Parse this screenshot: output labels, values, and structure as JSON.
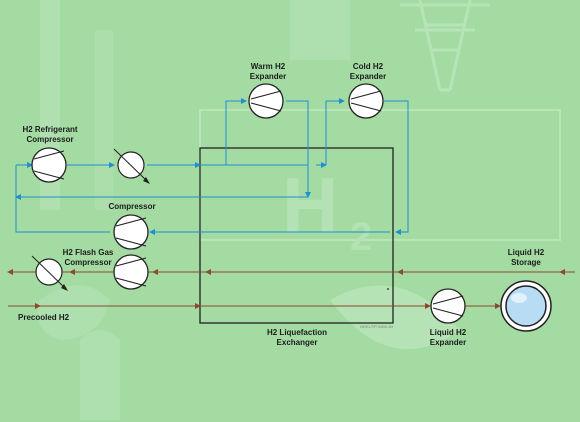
{
  "labels": {
    "warm_expander": [
      "Warm H2",
      "Expander"
    ],
    "cold_expander": [
      "Cold H2",
      "Expander"
    ],
    "refrigerant_compressor": [
      "H2 Refrigerant",
      "Compressor"
    ],
    "compressor": "Compressor",
    "flash_gas_compressor": [
      "H2 Flash Gas",
      "Compressor"
    ],
    "precooled": "Precooled H2",
    "exchanger": [
      "H2 Liquefaction",
      "Exchanger"
    ],
    "liquid_expander": [
      "Liquid H2",
      "Expander"
    ],
    "storage": [
      "Liquid H2",
      "Storage"
    ],
    "watermark": "NREL/TP-5400-84"
  },
  "colors": {
    "background": "#a3dba3",
    "blue_stream": "#1f8fd0",
    "brown_stream": "#8b4a2c",
    "equipment_outline": "#222222",
    "equipment_fill": "#ffffff",
    "storage_fill": "#b8dcf4"
  }
}
